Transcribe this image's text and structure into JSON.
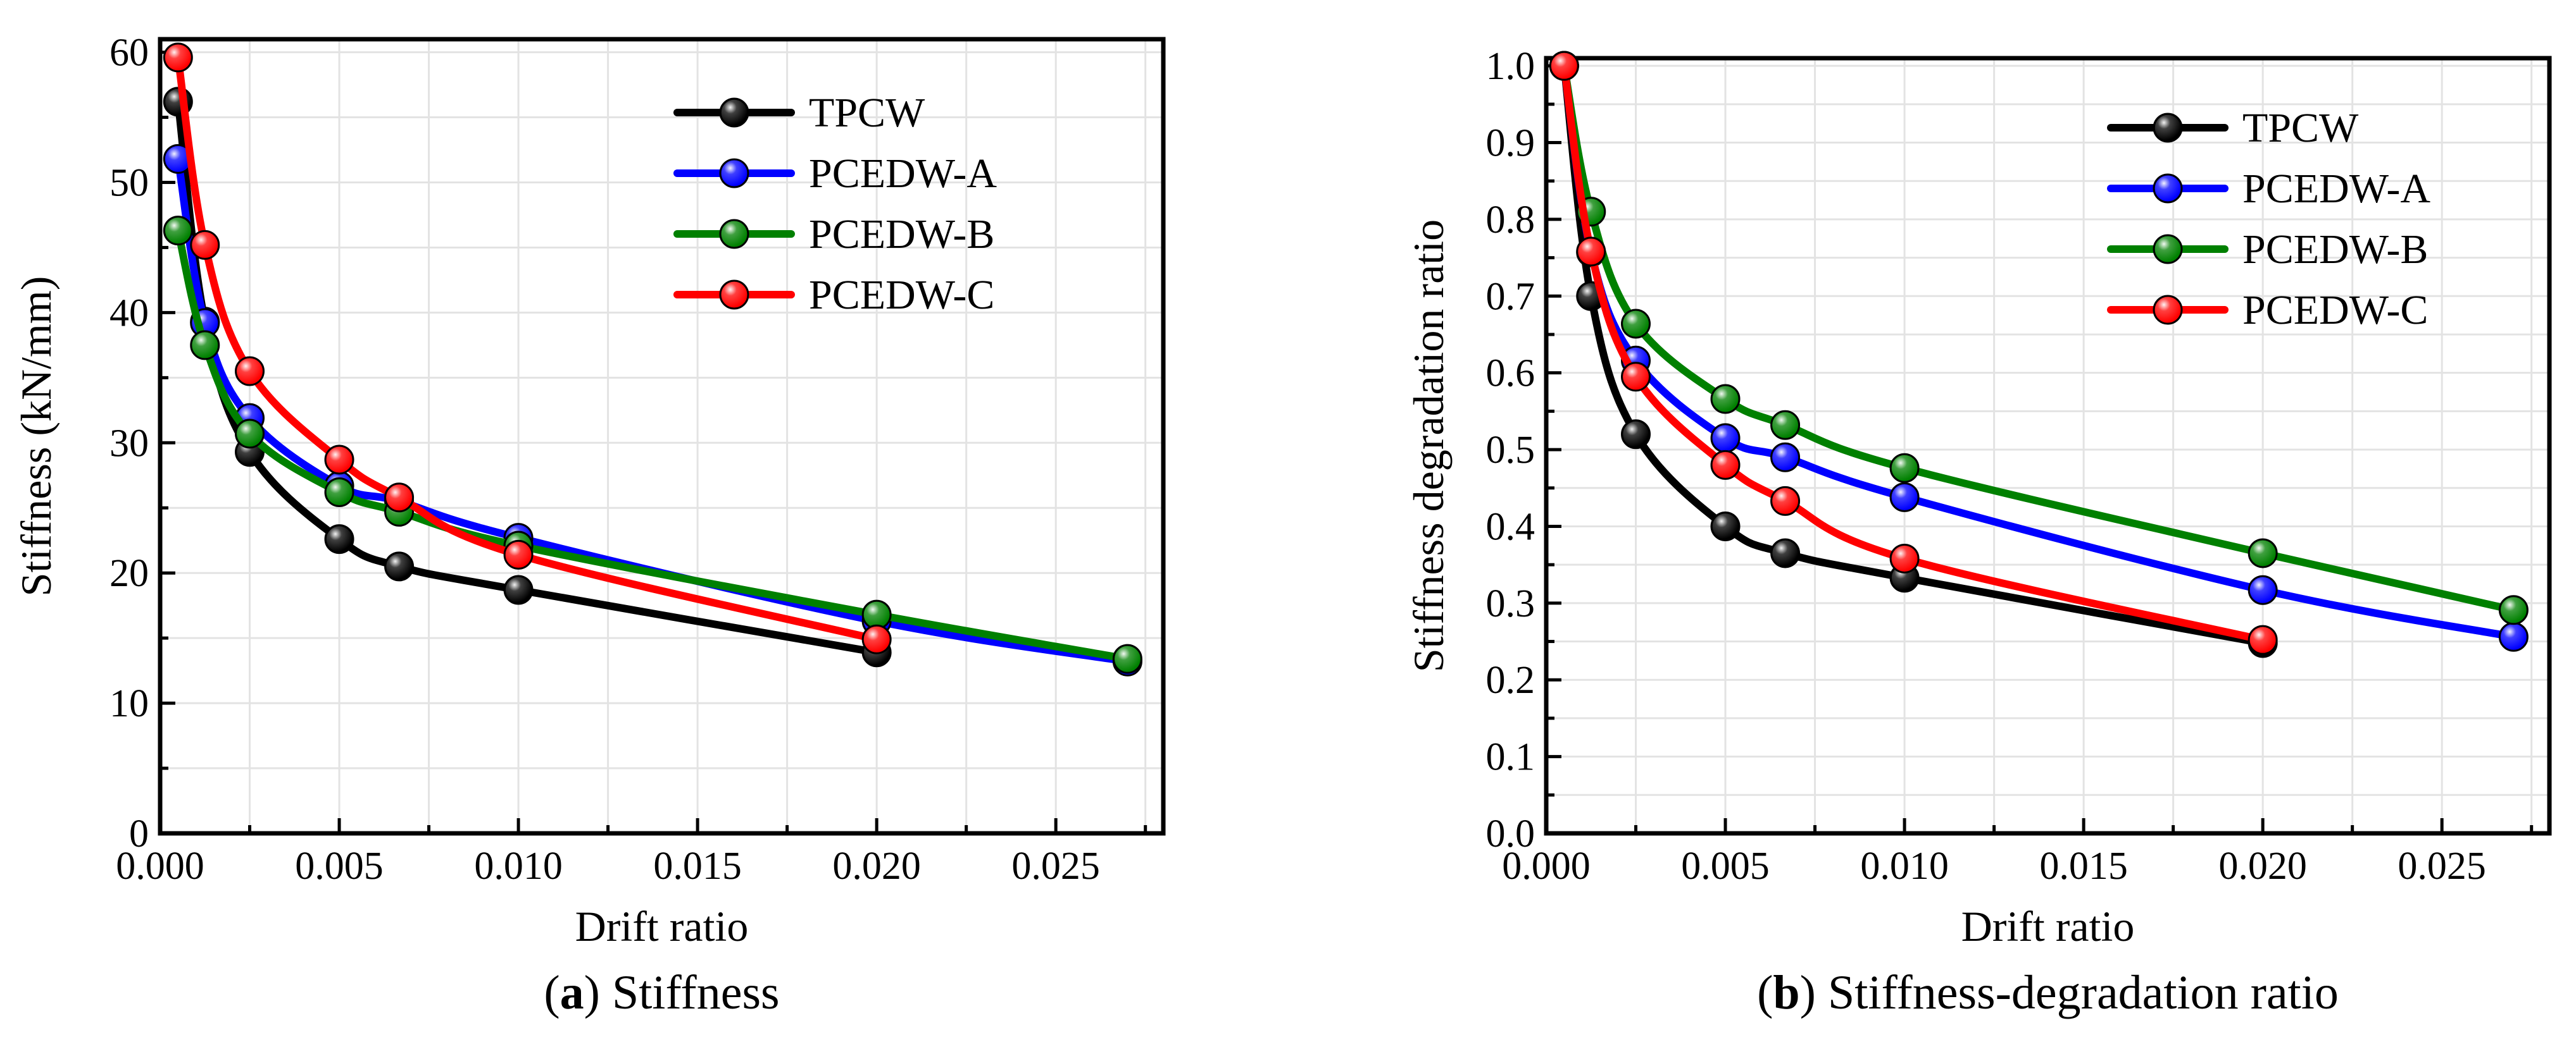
{
  "chart_data": [
    {
      "type": "line",
      "caption": {
        "letter": "a",
        "text": "Stiffness"
      },
      "xlabel": "Drift ratio",
      "ylabel": "Stiffness (kN/mm)",
      "xlim": [
        0,
        0.028
      ],
      "ylim": [
        0,
        61
      ],
      "xticks": [
        0,
        0.005,
        0.01,
        0.015,
        0.02,
        0.025
      ],
      "xtick_labels": [
        "0.000",
        "0.005",
        "0.010",
        "0.015",
        "0.020",
        "0.025"
      ],
      "yticks": [
        0,
        10,
        20,
        30,
        40,
        50,
        60
      ],
      "ytick_labels": [
        "0",
        "10",
        "20",
        "30",
        "40",
        "50",
        "60"
      ],
      "grid": true,
      "legend_position": "top-right",
      "series": [
        {
          "name": "TPCW",
          "color": "#000000",
          "x": [
            0.0005,
            0.00125,
            0.0025,
            0.005,
            0.00667,
            0.01,
            0.02
          ],
          "y": [
            56.2,
            39.3,
            29.3,
            22.6,
            20.5,
            18.7,
            13.9
          ]
        },
        {
          "name": "PCEDW-A",
          "color": "#0000ff",
          "x": [
            0.0005,
            0.00125,
            0.0025,
            0.005,
            0.00667,
            0.01,
            0.02,
            0.027
          ],
          "y": [
            51.8,
            39.2,
            31.9,
            26.7,
            25.5,
            22.7,
            16.3,
            13.2
          ]
        },
        {
          "name": "PCEDW-B",
          "color": "#008000",
          "x": [
            0.0005,
            0.00125,
            0.0025,
            0.005,
            0.00667,
            0.01,
            0.02,
            0.027
          ],
          "y": [
            46.3,
            37.5,
            30.7,
            26.2,
            24.7,
            22.1,
            16.8,
            13.4
          ]
        },
        {
          "name": "PCEDW-C",
          "color": "#ff0000",
          "x": [
            0.0005,
            0.00125,
            0.0025,
            0.005,
            0.00667,
            0.01,
            0.02
          ],
          "y": [
            59.6,
            45.2,
            35.5,
            28.7,
            25.8,
            21.4,
            14.9
          ]
        }
      ]
    },
    {
      "type": "line",
      "caption": {
        "letter": "b",
        "text": "Stiffness-degradation ratio"
      },
      "xlabel": "Drift ratio",
      "ylabel": "Stiffness degradation ratio",
      "xlim": [
        0,
        0.028
      ],
      "ylim": [
        0,
        1.01
      ],
      "xticks": [
        0,
        0.005,
        0.01,
        0.015,
        0.02,
        0.025
      ],
      "xtick_labels": [
        "0.000",
        "0.005",
        "0.010",
        "0.015",
        "0.020",
        "0.025"
      ],
      "yticks": [
        0,
        0.1,
        0.2,
        0.3,
        0.4,
        0.5,
        0.6,
        0.7,
        0.8,
        0.9,
        1.0
      ],
      "ytick_labels": [
        "0.0",
        "0.1",
        "0.2",
        "0.3",
        "0.4",
        "0.5",
        "0.6",
        "0.7",
        "0.8",
        "0.9",
        "1.0"
      ],
      "grid": true,
      "legend_position": "top-right",
      "series": [
        {
          "name": "TPCW",
          "color": "#000000",
          "x": [
            0.0005,
            0.00125,
            0.0025,
            0.005,
            0.00667,
            0.01,
            0.02
          ],
          "y": [
            1.0,
            0.7,
            0.52,
            0.4,
            0.365,
            0.333,
            0.248
          ]
        },
        {
          "name": "PCEDW-A",
          "color": "#0000ff",
          "x": [
            0.0005,
            0.00125,
            0.0025,
            0.005,
            0.00667,
            0.01,
            0.02,
            0.027
          ],
          "y": [
            1.0,
            0.757,
            0.616,
            0.515,
            0.49,
            0.438,
            0.317,
            0.256
          ]
        },
        {
          "name": "PCEDW-B",
          "color": "#008000",
          "x": [
            0.0005,
            0.00125,
            0.0025,
            0.005,
            0.00667,
            0.01,
            0.02,
            0.027
          ],
          "y": [
            1.0,
            0.81,
            0.664,
            0.566,
            0.532,
            0.476,
            0.365,
            0.291
          ]
        },
        {
          "name": "PCEDW-C",
          "color": "#ff0000",
          "x": [
            0.0005,
            0.00125,
            0.0025,
            0.005,
            0.00667,
            0.01,
            0.02
          ],
          "y": [
            1.0,
            0.758,
            0.595,
            0.48,
            0.433,
            0.358,
            0.252
          ]
        }
      ]
    }
  ]
}
